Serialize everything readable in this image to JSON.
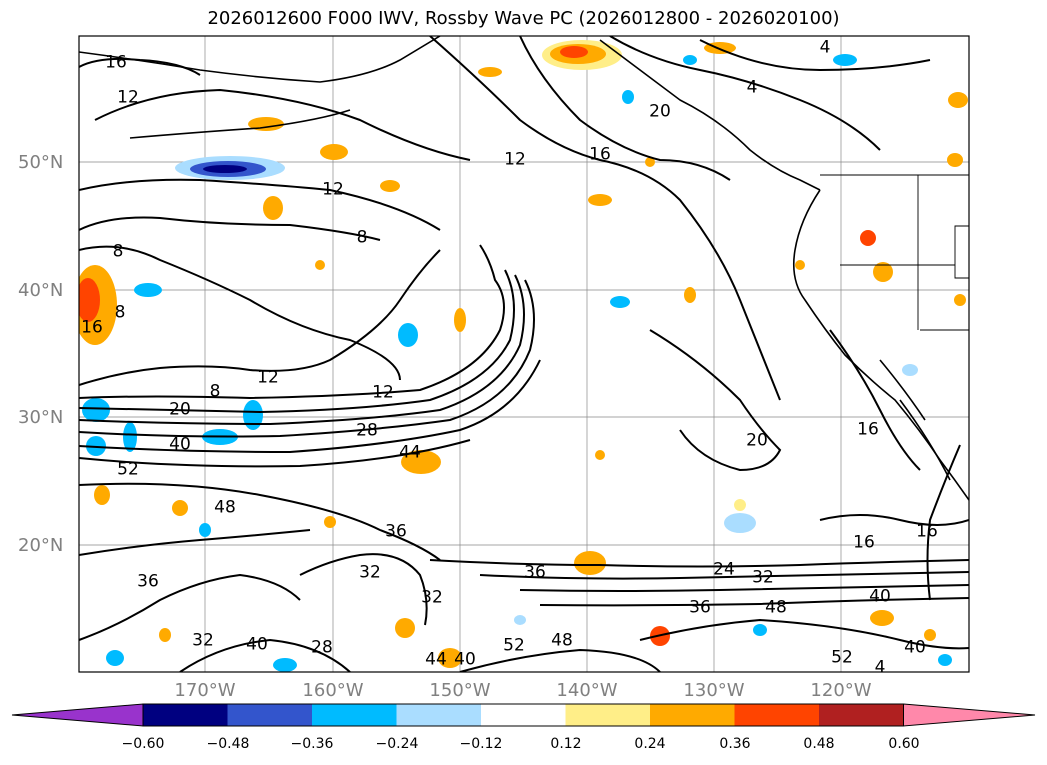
{
  "title": "2026012600 F000 IWV, Rossby Wave PC (2026012800 - 2026020100)",
  "map": {
    "lon_range": [
      -179,
      -109
    ],
    "lat_range": [
      10,
      60
    ],
    "lat_labels": [
      "50°N",
      "40°N",
      "30°N",
      "20°N"
    ],
    "lon_labels": [
      "170°W",
      "160°W",
      "150°W",
      "140°W",
      "130°W",
      "120°W"
    ],
    "gridlines": true,
    "contour_color": "#000000",
    "contour_labels": [
      "16",
      "12",
      "12",
      "8",
      "12",
      "16",
      "20",
      "4",
      "4",
      "12",
      "8",
      "16",
      "8",
      "12",
      "8",
      "20",
      "28",
      "40",
      "44",
      "52",
      "48",
      "36",
      "32",
      "36",
      "32",
      "36",
      "24",
      "32",
      "36",
      "48",
      "40",
      "16",
      "20",
      "16",
      "16",
      "40",
      "52",
      "48",
      "52",
      "4",
      "40",
      "32",
      "40",
      "28",
      "44"
    ],
    "shading_colors": {
      "pos_light": "#ffee88",
      "pos_mid": "#ffaa00",
      "pos_strong": "#ff4400",
      "neg_light": "#aaddff",
      "neg_mid": "#00bbff",
      "neg_strong": "#3355cc",
      "neg_max": "#000080"
    }
  },
  "colorbar": {
    "tick_labels": [
      "−0.60",
      "−0.48",
      "−0.36",
      "−0.24",
      "−0.12",
      "0.12",
      "0.24",
      "0.36",
      "0.48",
      "0.60"
    ],
    "colors": [
      "#9933cc",
      "#000080",
      "#3355cc",
      "#00bbff",
      "#aaddff",
      "#ffffff",
      "#ffee88",
      "#ffaa00",
      "#ff4400",
      "#b02020",
      "#ff88aa"
    ],
    "extend": "both"
  }
}
